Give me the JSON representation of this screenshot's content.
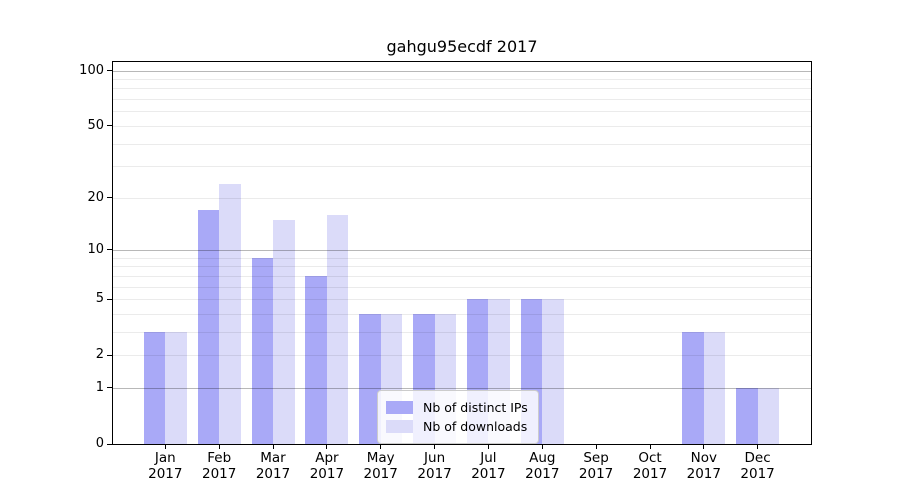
{
  "title": "gahgu95ecdf 2017",
  "chart_data": {
    "type": "bar",
    "title": "gahgu95ecdf 2017",
    "months": [
      "Jan",
      "Feb",
      "Mar",
      "Apr",
      "May",
      "Jun",
      "Jul",
      "Aug",
      "Sep",
      "Oct",
      "Nov",
      "Dec"
    ],
    "year": "2017",
    "series": [
      {
        "name": "Nb of distinct IPs",
        "color": "#a9a9f7",
        "values": [
          3,
          17,
          9,
          7,
          4,
          4,
          5,
          5,
          0,
          0,
          3,
          1
        ]
      },
      {
        "name": "Nb of downloads",
        "color": "#dbdbf9",
        "values": [
          3,
          24,
          15,
          16,
          4,
          4,
          5,
          5,
          0,
          0,
          3,
          1
        ]
      }
    ],
    "yscale": "log1p",
    "ylim": [
      0,
      112
    ],
    "ytick_labels": [
      100,
      50,
      20,
      10,
      5,
      2,
      1,
      0
    ],
    "grid_major": [
      1,
      10,
      100
    ],
    "grid_minor": [
      2,
      3,
      4,
      5,
      6,
      7,
      8,
      9,
      20,
      30,
      40,
      50,
      60,
      70,
      80,
      90
    ],
    "grid": "on",
    "legend_position": "lower-center"
  },
  "colors": {
    "background": "#ffffff",
    "axis": "#000000",
    "grid_major": "#b9b9b9",
    "grid_minor": "#ebebeb",
    "legend_border": "#cccccc"
  }
}
